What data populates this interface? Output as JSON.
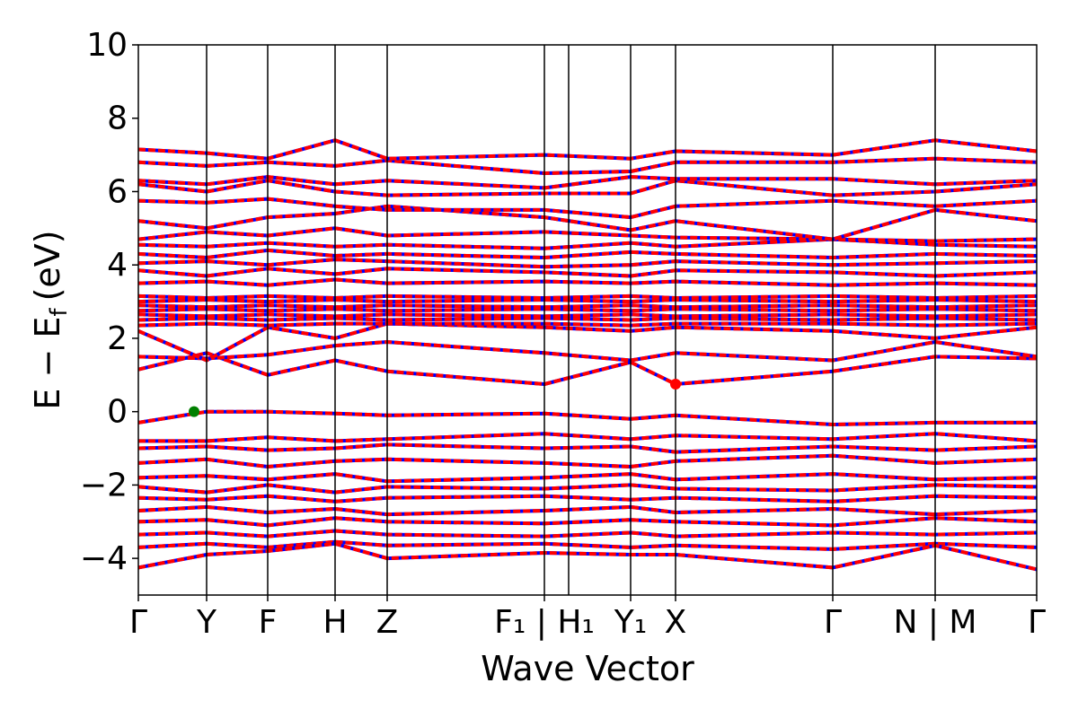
{
  "chart_data": {
    "type": "line",
    "title": "",
    "xlabel": "Wave Vector",
    "ylabel": "E − E",
    "ylabel_sub": "f",
    "ylabel_unit": "(eV)",
    "ylim": [
      -5,
      10
    ],
    "yticks": [
      {
        "value": -4,
        "label": "−4"
      },
      {
        "value": -2,
        "label": "−2"
      },
      {
        "value": 0,
        "label": "0"
      },
      {
        "value": 2,
        "label": "2"
      },
      {
        "value": 4,
        "label": "4"
      },
      {
        "value": 6,
        "label": "6"
      },
      {
        "value": 8,
        "label": "8"
      },
      {
        "value": 10,
        "label": "10"
      }
    ],
    "xlim": [
      0,
      1
    ],
    "kpoints": [
      {
        "x": 0.0,
        "label": "Γ"
      },
      {
        "x": 0.076,
        "label": "Y"
      },
      {
        "x": 0.144,
        "label": "F"
      },
      {
        "x": 0.219,
        "label": "H"
      },
      {
        "x": 0.277,
        "label": "Z"
      },
      {
        "x": 0.452,
        "label": "F₁ | H₁"
      },
      {
        "x": 0.548,
        "label": "Y₁"
      },
      {
        "x": 0.598,
        "label": "X"
      },
      {
        "x": 0.773,
        "label": "Γ"
      },
      {
        "x": 0.887,
        "label": "N | M"
      },
      {
        "x": 1.0,
        "label": "Γ"
      }
    ],
    "kpoint_lines": [
      0.076,
      0.144,
      0.219,
      0.277,
      0.452,
      0.479,
      0.548,
      0.598,
      0.773,
      0.887
    ],
    "vbm": {
      "x": 0.062,
      "y": 0.0,
      "color": "#008000"
    },
    "cbm": {
      "x": 0.598,
      "y": 0.75,
      "color": "#ff0000"
    },
    "series": [
      {
        "color": "#0000ff"
      },
      {
        "color": "#ff0000"
      }
    ],
    "bands": [
      {
        "x": [
          0,
          0.076,
          0.144,
          0.219,
          0.277,
          0.452,
          0.548,
          0.598,
          0.773,
          0.887,
          1.0
        ],
        "y": [
          1.15,
          1.6,
          1.0,
          1.4,
          1.1,
          0.75,
          1.35,
          0.75,
          1.1,
          1.5,
          1.45
        ]
      },
      {
        "x": [
          0,
          0.076,
          0.144,
          0.219,
          0.277,
          0.452,
          0.548,
          0.598,
          0.773,
          0.887,
          1.0
        ],
        "y": [
          1.5,
          1.45,
          1.55,
          1.8,
          1.9,
          1.6,
          1.4,
          1.6,
          1.4,
          1.9,
          1.5
        ]
      },
      {
        "x": [
          0,
          0.076,
          0.144,
          0.219,
          0.277,
          0.452,
          0.548,
          0.598,
          0.773,
          0.887,
          1.0
        ],
        "y": [
          2.2,
          1.4,
          2.3,
          2.0,
          2.4,
          2.3,
          2.2,
          2.3,
          2.2,
          2.0,
          2.3
        ]
      },
      {
        "x": [
          0,
          0.076,
          0.144,
          0.219,
          0.277,
          0.452,
          0.548,
          0.598,
          0.773,
          0.887,
          1.0
        ],
        "y": [
          2.35,
          2.4,
          2.35,
          2.4,
          2.4,
          2.4,
          2.35,
          2.4,
          2.4,
          2.35,
          2.4
        ]
      },
      {
        "x": [
          0,
          0.076,
          0.144,
          0.219,
          0.277,
          0.452,
          0.548,
          0.598,
          0.773,
          0.887,
          1.0
        ],
        "y": [
          2.5,
          2.55,
          2.5,
          2.55,
          2.5,
          2.55,
          2.5,
          2.55,
          2.5,
          2.55,
          2.5
        ]
      },
      {
        "x": [
          0,
          0.076,
          0.144,
          0.219,
          0.277,
          0.452,
          0.548,
          0.598,
          0.773,
          0.887,
          1.0
        ],
        "y": [
          2.65,
          2.6,
          2.65,
          2.6,
          2.65,
          2.6,
          2.65,
          2.6,
          2.65,
          2.6,
          2.65
        ]
      },
      {
        "x": [
          0,
          0.076,
          0.144,
          0.219,
          0.277,
          0.452,
          0.548,
          0.598,
          0.773,
          0.887,
          1.0
        ],
        "y": [
          2.75,
          2.8,
          2.75,
          2.8,
          2.75,
          2.8,
          2.75,
          2.8,
          2.75,
          2.8,
          2.75
        ]
      },
      {
        "x": [
          0,
          0.076,
          0.144,
          0.219,
          0.277,
          0.452,
          0.548,
          0.598,
          0.773,
          0.887,
          1.0
        ],
        "y": [
          2.9,
          2.85,
          2.9,
          2.85,
          2.9,
          2.85,
          2.9,
          2.85,
          2.9,
          2.85,
          2.9
        ]
      },
      {
        "x": [
          0,
          0.076,
          0.144,
          0.219,
          0.277,
          0.452,
          0.548,
          0.598,
          0.773,
          0.887,
          1.0
        ],
        "y": [
          3.0,
          3.05,
          3.0,
          3.05,
          3.0,
          3.05,
          3.0,
          3.05,
          3.0,
          3.05,
          3.0
        ]
      },
      {
        "x": [
          0,
          0.076,
          0.144,
          0.219,
          0.277,
          0.452,
          0.548,
          0.598,
          0.773,
          0.887,
          1.0
        ],
        "y": [
          3.15,
          3.1,
          3.15,
          3.1,
          3.15,
          3.1,
          3.15,
          3.1,
          3.15,
          3.1,
          3.15
        ]
      },
      {
        "x": [
          0,
          0.076,
          0.144,
          0.219,
          0.277,
          0.452,
          0.548,
          0.598,
          0.773,
          0.887,
          1.0
        ],
        "y": [
          3.5,
          3.55,
          3.45,
          3.6,
          3.5,
          3.55,
          3.5,
          3.55,
          3.45,
          3.5,
          3.45
        ]
      },
      {
        "x": [
          0,
          0.076,
          0.144,
          0.219,
          0.277,
          0.452,
          0.548,
          0.598,
          0.773,
          0.887,
          1.0
        ],
        "y": [
          3.85,
          3.7,
          3.9,
          3.75,
          3.9,
          3.8,
          3.7,
          3.85,
          3.8,
          3.7,
          3.8
        ]
      },
      {
        "x": [
          0,
          0.076,
          0.144,
          0.219,
          0.277,
          0.452,
          0.548,
          0.598,
          0.773,
          0.887,
          1.0
        ],
        "y": [
          4.05,
          4.1,
          4.0,
          4.15,
          4.1,
          3.95,
          4.0,
          4.1,
          4.0,
          4.05,
          4.1
        ]
      },
      {
        "x": [
          0,
          0.076,
          0.144,
          0.219,
          0.277,
          0.452,
          0.548,
          0.598,
          0.773,
          0.887,
          1.0
        ],
        "y": [
          4.3,
          4.2,
          4.4,
          4.25,
          4.3,
          4.2,
          4.35,
          4.3,
          4.2,
          4.3,
          4.25
        ]
      },
      {
        "x": [
          0,
          0.076,
          0.144,
          0.219,
          0.277,
          0.452,
          0.548,
          0.598,
          0.773,
          0.887,
          1.0
        ],
        "y": [
          4.55,
          4.5,
          4.6,
          4.5,
          4.55,
          4.45,
          4.6,
          4.5,
          4.7,
          4.55,
          4.5
        ]
      },
      {
        "x": [
          0,
          0.076,
          0.144,
          0.219,
          0.277,
          0.452,
          0.548,
          0.598,
          0.773,
          0.887,
          1.0
        ],
        "y": [
          4.7,
          4.9,
          4.8,
          5.0,
          4.8,
          4.9,
          4.8,
          4.75,
          4.7,
          4.65,
          4.7
        ]
      },
      {
        "x": [
          0,
          0.076,
          0.144,
          0.219,
          0.277,
          0.452,
          0.548,
          0.598,
          0.773,
          0.887,
          1.0
        ],
        "y": [
          5.2,
          5.0,
          5.3,
          5.4,
          5.6,
          5.3,
          4.95,
          5.2,
          4.7,
          5.5,
          5.2
        ]
      },
      {
        "x": [
          0,
          0.076,
          0.144,
          0.219,
          0.277,
          0.452,
          0.548,
          0.598,
          0.773,
          0.887,
          1.0
        ],
        "y": [
          5.75,
          5.7,
          5.8,
          5.6,
          5.5,
          5.5,
          5.3,
          5.6,
          5.75,
          5.6,
          5.75
        ]
      },
      {
        "x": [
          0,
          0.076,
          0.144,
          0.219,
          0.277,
          0.452,
          0.548,
          0.598,
          0.773,
          0.887,
          1.0
        ],
        "y": [
          6.2,
          6.0,
          6.3,
          6.0,
          5.9,
          5.95,
          5.95,
          6.3,
          5.9,
          6.0,
          6.2
        ]
      },
      {
        "x": [
          0,
          0.076,
          0.144,
          0.219,
          0.277,
          0.452,
          0.548,
          0.598,
          0.773,
          0.887,
          1.0
        ],
        "y": [
          6.3,
          6.2,
          6.4,
          6.2,
          6.3,
          6.1,
          6.4,
          6.35,
          6.35,
          6.2,
          6.3
        ]
      },
      {
        "x": [
          0,
          0.076,
          0.144,
          0.219,
          0.277,
          0.452,
          0.548,
          0.598,
          0.773,
          0.887,
          1.0
        ],
        "y": [
          6.8,
          6.7,
          6.8,
          6.7,
          6.85,
          6.5,
          6.55,
          6.8,
          6.8,
          6.9,
          6.8
        ]
      },
      {
        "x": [
          0,
          0.076,
          0.144,
          0.219,
          0.277,
          0.452,
          0.548,
          0.598,
          0.773,
          0.887,
          1.0
        ],
        "y": [
          7.15,
          7.05,
          6.9,
          7.4,
          6.9,
          7.0,
          6.9,
          7.1,
          7.0,
          7.4,
          7.1
        ]
      },
      {
        "x": [
          0,
          0.076,
          0.144,
          0.219,
          0.277,
          0.452,
          0.548,
          0.598,
          0.773,
          0.887,
          1.0
        ],
        "y": [
          -0.3,
          0.0,
          0.0,
          -0.05,
          -0.1,
          -0.05,
          -0.2,
          -0.1,
          -0.35,
          -0.3,
          -0.3
        ]
      },
      {
        "x": [
          0,
          0.076,
          0.144,
          0.219,
          0.277,
          0.452,
          0.548,
          0.598,
          0.773,
          0.887,
          1.0
        ],
        "y": [
          -0.8,
          -0.8,
          -0.7,
          -0.8,
          -0.75,
          -0.6,
          -0.75,
          -0.65,
          -0.75,
          -0.6,
          -0.8
        ]
      },
      {
        "x": [
          0,
          0.076,
          0.144,
          0.219,
          0.277,
          0.452,
          0.548,
          0.598,
          0.773,
          0.887,
          1.0
        ],
        "y": [
          -1.0,
          -0.95,
          -1.05,
          -1.0,
          -0.9,
          -1.0,
          -0.95,
          -1.1,
          -0.95,
          -1.05,
          -0.95
        ]
      },
      {
        "x": [
          0,
          0.076,
          0.144,
          0.219,
          0.277,
          0.452,
          0.548,
          0.598,
          0.773,
          0.887,
          1.0
        ],
        "y": [
          -1.4,
          -1.3,
          -1.5,
          -1.35,
          -1.3,
          -1.4,
          -1.5,
          -1.35,
          -1.2,
          -1.4,
          -1.3
        ]
      },
      {
        "x": [
          0,
          0.076,
          0.144,
          0.219,
          0.277,
          0.452,
          0.548,
          0.598,
          0.773,
          0.887,
          1.0
        ],
        "y": [
          -1.8,
          -1.75,
          -1.85,
          -1.7,
          -1.9,
          -1.8,
          -1.7,
          -1.85,
          -1.7,
          -1.85,
          -1.8
        ]
      },
      {
        "x": [
          0,
          0.076,
          0.144,
          0.219,
          0.277,
          0.452,
          0.548,
          0.598,
          0.773,
          0.887,
          1.0
        ],
        "y": [
          -2.05,
          -2.2,
          -2.0,
          -2.2,
          -2.05,
          -2.1,
          -2.0,
          -2.1,
          -2.15,
          -2.0,
          -2.05
        ]
      },
      {
        "x": [
          0,
          0.076,
          0.144,
          0.219,
          0.277,
          0.452,
          0.548,
          0.598,
          0.773,
          0.887,
          1.0
        ],
        "y": [
          -2.35,
          -2.4,
          -2.3,
          -2.45,
          -2.35,
          -2.3,
          -2.4,
          -2.35,
          -2.45,
          -2.3,
          -2.35
        ]
      },
      {
        "x": [
          0,
          0.076,
          0.144,
          0.219,
          0.277,
          0.452,
          0.548,
          0.598,
          0.773,
          0.887,
          1.0
        ],
        "y": [
          -2.7,
          -2.6,
          -2.75,
          -2.65,
          -2.8,
          -2.7,
          -2.6,
          -2.75,
          -2.65,
          -2.8,
          -2.7
        ]
      },
      {
        "x": [
          0,
          0.076,
          0.144,
          0.219,
          0.277,
          0.452,
          0.548,
          0.598,
          0.773,
          0.887,
          1.0
        ],
        "y": [
          -3.0,
          -2.95,
          -3.1,
          -2.9,
          -3.0,
          -3.05,
          -2.95,
          -3.0,
          -3.1,
          -2.9,
          -3.0
        ]
      },
      {
        "x": [
          0,
          0.076,
          0.144,
          0.219,
          0.277,
          0.452,
          0.548,
          0.598,
          0.773,
          0.887,
          1.0
        ],
        "y": [
          -3.35,
          -3.3,
          -3.4,
          -3.25,
          -3.35,
          -3.4,
          -3.3,
          -3.4,
          -3.3,
          -3.35,
          -3.3
        ]
      },
      {
        "x": [
          0,
          0.076,
          0.144,
          0.219,
          0.277,
          0.452,
          0.548,
          0.598,
          0.773,
          0.887,
          1.0
        ],
        "y": [
          -3.7,
          -3.6,
          -3.7,
          -3.55,
          -3.65,
          -3.6,
          -3.7,
          -3.65,
          -3.75,
          -3.6,
          -3.7
        ]
      },
      {
        "x": [
          0,
          0.076,
          0.144,
          0.219,
          0.277,
          0.452,
          0.548,
          0.598,
          0.773,
          0.887,
          1.0
        ],
        "y": [
          -4.25,
          -3.9,
          -3.8,
          -3.6,
          -4.0,
          -3.85,
          -3.9,
          -3.9,
          -4.25,
          -3.65,
          -4.3
        ]
      }
    ]
  }
}
